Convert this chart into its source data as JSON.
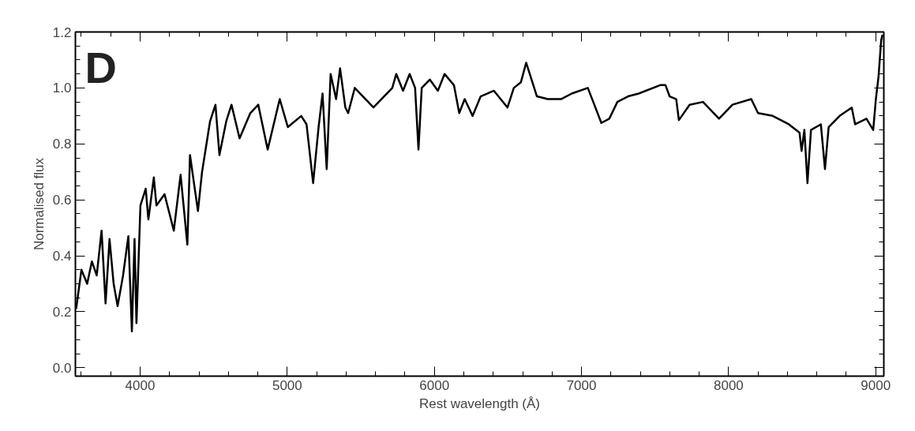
{
  "chart_data": {
    "type": "line",
    "xlabel": "Rest wavelength (Å)",
    "ylabel": "Normalised flux",
    "annotations": [
      "D"
    ],
    "xlim": [
      3560,
      9055
    ],
    "ylim": [
      -0.03,
      1.2
    ],
    "xticks": [
      4000,
      5000,
      6000,
      7000,
      8000,
      9000
    ],
    "yticks": [
      {
        "value": 0,
        "label": "0.0"
      },
      {
        "value": 0.2,
        "label": "0.2"
      },
      {
        "value": 0.4,
        "label": "0.4"
      },
      {
        "value": 0.6,
        "label": "0.6"
      },
      {
        "value": 0.8,
        "label": "0.8"
      },
      {
        "value": 1.0,
        "label": "1.0"
      },
      {
        "value": 1.2,
        "label": "1.2"
      }
    ],
    "grid": false,
    "marker": "none",
    "line_style": "solid",
    "series": [
      {
        "color": "#000000",
        "x": [
          3565,
          3601,
          3640,
          3672,
          3705,
          3738,
          3765,
          3792,
          3820,
          3847,
          3884,
          3920,
          3944,
          3962,
          3975,
          4002,
          4038,
          4056,
          4093,
          4111,
          4166,
          4229,
          4275,
          4321,
          4339,
          4393,
          4421,
          4475,
          4512,
          4539,
          4585,
          4621,
          4676,
          4749,
          4803,
          4867,
          4949,
          5004,
          5095,
          5131,
          5176,
          5213,
          5240,
          5268,
          5295,
          5332,
          5359,
          5395,
          5414,
          5459,
          5586,
          5714,
          5741,
          5787,
          5832,
          5869,
          5892,
          5914,
          5969,
          6024,
          6069,
          6133,
          6169,
          6206,
          6260,
          6315,
          6405,
          6497,
          6540,
          6588,
          6624,
          6697,
          6770,
          6861,
          6934,
          7043,
          7080,
          7135,
          7189,
          7244,
          7280,
          7317,
          7389,
          7535,
          7571,
          7599,
          7644,
          7662,
          7735,
          7826,
          7935,
          8026,
          8154,
          8200,
          8300,
          8409,
          8482,
          8496,
          8515,
          8536,
          8560,
          8627,
          8655,
          8680,
          8755,
          8837,
          8860,
          8937,
          8983,
          9001,
          9019,
          9037,
          9046
        ],
        "values": [
          0.21,
          0.35,
          0.3,
          0.38,
          0.33,
          0.49,
          0.23,
          0.46,
          0.3,
          0.22,
          0.33,
          0.47,
          0.13,
          0.46,
          0.16,
          0.58,
          0.64,
          0.53,
          0.68,
          0.58,
          0.62,
          0.49,
          0.69,
          0.44,
          0.76,
          0.56,
          0.7,
          0.88,
          0.94,
          0.76,
          0.88,
          0.94,
          0.82,
          0.91,
          0.94,
          0.78,
          0.96,
          0.86,
          0.9,
          0.87,
          0.66,
          0.86,
          0.98,
          0.71,
          1.05,
          0.96,
          1.07,
          0.93,
          0.91,
          1.0,
          0.93,
          1.0,
          1.05,
          0.99,
          1.05,
          1.0,
          0.78,
          1.0,
          1.03,
          0.99,
          1.05,
          1.01,
          0.91,
          0.96,
          0.9,
          0.97,
          0.99,
          0.93,
          1.0,
          1.02,
          1.09,
          0.97,
          0.96,
          0.96,
          0.98,
          1.0,
          0.95,
          0.875,
          0.89,
          0.95,
          0.96,
          0.97,
          0.98,
          1.01,
          1.01,
          0.97,
          0.96,
          0.885,
          0.94,
          0.95,
          0.89,
          0.94,
          0.96,
          0.91,
          0.9,
          0.87,
          0.84,
          0.775,
          0.85,
          0.66,
          0.85,
          0.87,
          0.71,
          0.86,
          0.9,
          0.93,
          0.87,
          0.89,
          0.85,
          0.96,
          1.04,
          1.17,
          1.19
        ]
      }
    ]
  }
}
